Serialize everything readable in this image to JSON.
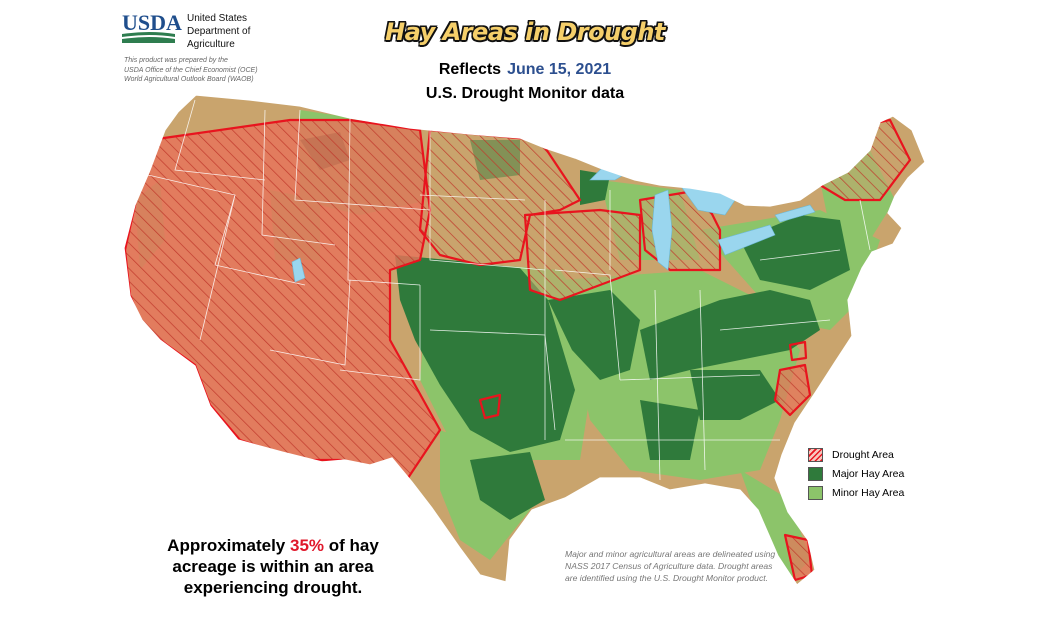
{
  "header": {
    "agency_line1": "United States",
    "agency_line2": "Department of",
    "agency_line3": "Agriculture",
    "prepared_line1": "This product was prepared by the",
    "prepared_line2": "USDA Office of the Chief Economist (OCE)",
    "prepared_line3": "World Agricultural Outlook Board (WAOB)"
  },
  "title": "Hay Areas in Drought",
  "subtitle": {
    "reflects": "Reflects",
    "date": "June 15, 2021",
    "source": "U.S. Drought Monitor data"
  },
  "legend": {
    "items": [
      {
        "label": "Drought Area",
        "color": "#e8735a"
      },
      {
        "label": "Major Hay Area",
        "color": "#2f7a3b"
      },
      {
        "label": "Minor Hay Area",
        "color": "#8cc46a"
      }
    ]
  },
  "stat": {
    "before": "Approximately ",
    "percent": "35%",
    "after": " of hay acreage is within an area experiencing drought."
  },
  "footnote": "Major and minor agricultural areas are delineated using NASS 2017 Census of Agriculture data.  Drought areas are identified using the U.S. Drought Monitor product.",
  "colors": {
    "background_land": "#c9a46d",
    "major_hay": "#2f7a3b",
    "minor_hay": "#8cc46a",
    "drought_fill": "#e8735a",
    "drought_outline": "#e8141e",
    "water": "#9ad6ee",
    "title_fill": "#f5cf6a",
    "date_color": "#2c4f8f"
  }
}
